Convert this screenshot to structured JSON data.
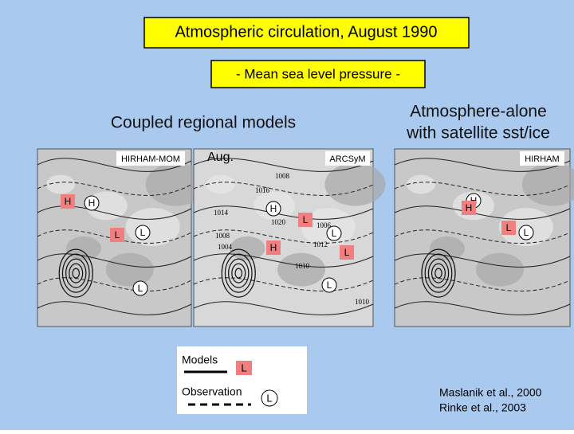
{
  "header": {
    "title": "Atmospheric circulation, August 1990",
    "subtitle": "- Mean sea level pressure -"
  },
  "headings": {
    "coupled": "Coupled regional models",
    "alone": [
      "Atmosphere-alone",
      "with satellite sst/ice"
    ]
  },
  "maps": [
    {
      "label": "HIRHAM-MOM",
      "markers": [
        {
          "text": "H",
          "kind": "model"
        },
        {
          "text": "H",
          "kind": "observation"
        },
        {
          "text": "L",
          "kind": "model"
        },
        {
          "text": "L",
          "kind": "observation"
        },
        {
          "text": "L",
          "kind": "observation"
        }
      ]
    },
    {
      "label": "ARCSyM",
      "month": "Aug.",
      "isobars": [
        "1008",
        "1016",
        "1014",
        "1008",
        "1004",
        "1020",
        "1006",
        "1012",
        "1010",
        "1010"
      ],
      "markers": [
        {
          "text": "H",
          "kind": "observation"
        },
        {
          "text": "L",
          "kind": "model"
        },
        {
          "text": "L",
          "kind": "observation"
        },
        {
          "text": "H",
          "kind": "model"
        },
        {
          "text": "L",
          "kind": "model"
        },
        {
          "text": "L",
          "kind": "observation"
        }
      ]
    },
    {
      "label": "HIRHAM",
      "markers": [
        {
          "text": "H",
          "kind": "observation"
        },
        {
          "text": "H",
          "kind": "model"
        },
        {
          "text": "L",
          "kind": "model"
        },
        {
          "text": "L",
          "kind": "observation"
        }
      ]
    }
  ],
  "legend": {
    "models": "Models",
    "models_marker": "L",
    "observation": "Observation",
    "observation_marker": "L"
  },
  "references": [
    "Maslanik et al., 2000",
    "Rinke et al., 2003"
  ]
}
